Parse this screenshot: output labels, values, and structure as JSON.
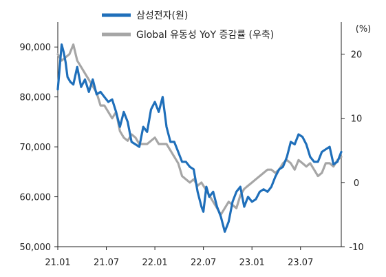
{
  "chart_data": {
    "type": "line",
    "title": "",
    "xlabel": "",
    "ylabel_left": "",
    "ylabel_right": "(%)",
    "x_tick_labels": [
      "21.01",
      "21.07",
      "22.01",
      "22.07",
      "23.01",
      "23.07"
    ],
    "left_axis": {
      "ylim": [
        50000,
        95000
      ],
      "ticks": [
        "90,000",
        "80,000",
        "70,000",
        "60,000",
        "50,000"
      ],
      "tick_values": [
        90000,
        80000,
        70000,
        60000,
        50000
      ]
    },
    "right_axis": {
      "ylim": [
        -10,
        25
      ],
      "ticks": [
        "20",
        "10",
        "0",
        "-10"
      ],
      "tick_values": [
        20,
        10,
        0,
        -10
      ]
    },
    "legend_position": "top-center",
    "grid": false,
    "series": [
      {
        "name": "삼성전자(원)",
        "axis": "left",
        "color": "#1f6fba",
        "x": [
          2021.0,
          2021.02,
          2021.04,
          2021.06,
          2021.08,
          2021.1,
          2021.13,
          2021.16,
          2021.2,
          2021.24,
          2021.28,
          2021.32,
          2021.36,
          2021.4,
          2021.44,
          2021.48,
          2021.52,
          2021.56,
          2021.6,
          2021.64,
          2021.68,
          2021.72,
          2021.76,
          2021.8,
          2021.84,
          2021.88,
          2021.92,
          2021.96,
          2022.0,
          2022.04,
          2022.08,
          2022.12,
          2022.16,
          2022.2,
          2022.24,
          2022.28,
          2022.32,
          2022.36,
          2022.4,
          2022.44,
          2022.48,
          2022.5,
          2022.53,
          2022.56,
          2022.6,
          2022.64,
          2022.68,
          2022.72,
          2022.76,
          2022.8,
          2022.84,
          2022.88,
          2022.92,
          2022.96,
          2023.0,
          2023.04,
          2023.08,
          2023.12,
          2023.16,
          2023.2,
          2023.24,
          2023.28,
          2023.32,
          2023.36,
          2023.4,
          2023.44,
          2023.48,
          2023.52,
          2023.56,
          2023.6,
          2023.64,
          2023.68,
          2023.72,
          2023.76,
          2023.8,
          2023.84,
          2023.88,
          2023.92
        ],
        "values": [
          81500,
          86000,
          90500,
          89000,
          87000,
          84000,
          83000,
          82500,
          86000,
          82000,
          83500,
          81000,
          83500,
          80500,
          81000,
          80000,
          79000,
          79500,
          77000,
          74000,
          77000,
          75000,
          71000,
          70500,
          70000,
          74000,
          73000,
          77500,
          79000,
          77000,
          80000,
          74000,
          71000,
          71000,
          69000,
          67000,
          67000,
          66000,
          65500,
          61000,
          58000,
          57000,
          62000,
          60000,
          61000,
          58000,
          56000,
          53000,
          55000,
          59000,
          61000,
          62000,
          58000,
          60000,
          59000,
          59500,
          61000,
          61500,
          61000,
          62000,
          64000,
          65500,
          66000,
          68000,
          71000,
          70500,
          72500,
          72000,
          70500,
          68000,
          67000,
          67000,
          69000,
          69500,
          70000,
          66500,
          67000,
          69000
        ]
      },
      {
        "name": "Global 유동성 YoY 증감률 (우축)",
        "axis": "right",
        "color": "#a6a6a6",
        "x": [
          2021.0,
          2021.04,
          2021.08,
          2021.12,
          2021.16,
          2021.2,
          2021.24,
          2021.28,
          2021.32,
          2021.36,
          2021.4,
          2021.44,
          2021.48,
          2021.52,
          2021.56,
          2021.6,
          2021.64,
          2021.68,
          2021.72,
          2021.76,
          2021.8,
          2021.84,
          2021.88,
          2021.92,
          2021.96,
          2022.0,
          2022.04,
          2022.08,
          2022.12,
          2022.16,
          2022.2,
          2022.24,
          2022.28,
          2022.32,
          2022.36,
          2022.4,
          2022.44,
          2022.48,
          2022.52,
          2022.56,
          2022.6,
          2022.64,
          2022.68,
          2022.72,
          2022.76,
          2022.8,
          2022.84,
          2022.88,
          2022.92,
          2022.96,
          2023.0,
          2023.04,
          2023.08,
          2023.12,
          2023.16,
          2023.2,
          2023.24,
          2023.28,
          2023.32,
          2023.36,
          2023.4,
          2023.44,
          2023.48,
          2023.52,
          2023.56,
          2023.6,
          2023.64,
          2023.68,
          2023.72,
          2023.76,
          2023.8,
          2023.84,
          2023.88,
          2023.92
        ],
        "values": [
          20,
          19,
          19.5,
          20,
          21.5,
          19,
          18,
          17,
          16,
          15,
          14,
          12,
          12,
          11,
          10,
          11,
          8,
          7,
          6.5,
          7.5,
          7,
          6,
          6,
          6,
          6.5,
          7,
          6,
          6,
          6,
          5,
          4,
          3,
          1,
          0.5,
          0,
          0.5,
          -0.5,
          0,
          -1,
          -2,
          -3,
          -4,
          -5,
          -4,
          -3,
          -3.5,
          -4,
          -2,
          -1,
          -0.5,
          0,
          0.5,
          1,
          1.5,
          2,
          2,
          1.5,
          2,
          3,
          3.5,
          3,
          2,
          3.5,
          3,
          2.5,
          3,
          2,
          1,
          1.5,
          3,
          3,
          2.5,
          3.5,
          4
        ]
      }
    ]
  }
}
